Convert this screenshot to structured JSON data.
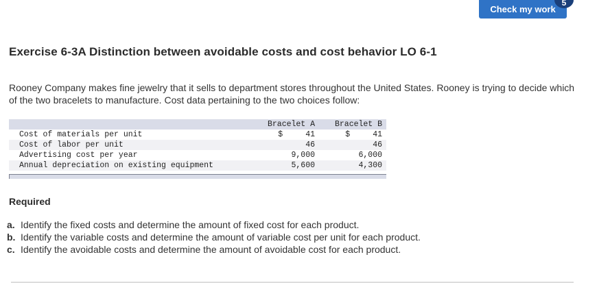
{
  "toolbar": {
    "check_label": "Check my work",
    "check_badge": "5",
    "accent_color": "#2f73c6"
  },
  "exercise": {
    "title": "Exercise 6-3A Distinction between avoidable costs and cost behavior LO 6-1",
    "intro": "Rooney Company makes fine jewelry that it sells to department stores throughout the United States. Rooney is trying to decide which of the two bracelets to manufacture. Cost data pertaining to the two choices follow:"
  },
  "table": {
    "headers": {
      "label": "",
      "a": "Bracelet A",
      "b": "Bracelet B"
    },
    "rows": [
      {
        "label": "Cost of materials per unit",
        "a_cur": "$",
        "a": "41",
        "b_cur": "$",
        "b": "41"
      },
      {
        "label": "Cost of labor per unit",
        "a_cur": "",
        "a": "46",
        "b_cur": "",
        "b": "46"
      },
      {
        "label": "Advertising cost per year",
        "a_cur": "",
        "a": "9,000",
        "b_cur": "",
        "b": "6,000"
      },
      {
        "label": "Annual depreciation on existing equipment",
        "a_cur": "",
        "a": "5,600",
        "b_cur": "",
        "b": "4,300"
      }
    ]
  },
  "required": {
    "heading": "Required",
    "items": [
      {
        "letter": "a.",
        "text": "Identify the fixed costs and determine the amount of fixed cost for each product."
      },
      {
        "letter": "b.",
        "text": "Identify the variable costs and determine the amount of variable cost per unit for each product."
      },
      {
        "letter": "c.",
        "text": "Identify the avoidable costs and determine the amount of avoidable cost for each product."
      }
    ]
  }
}
